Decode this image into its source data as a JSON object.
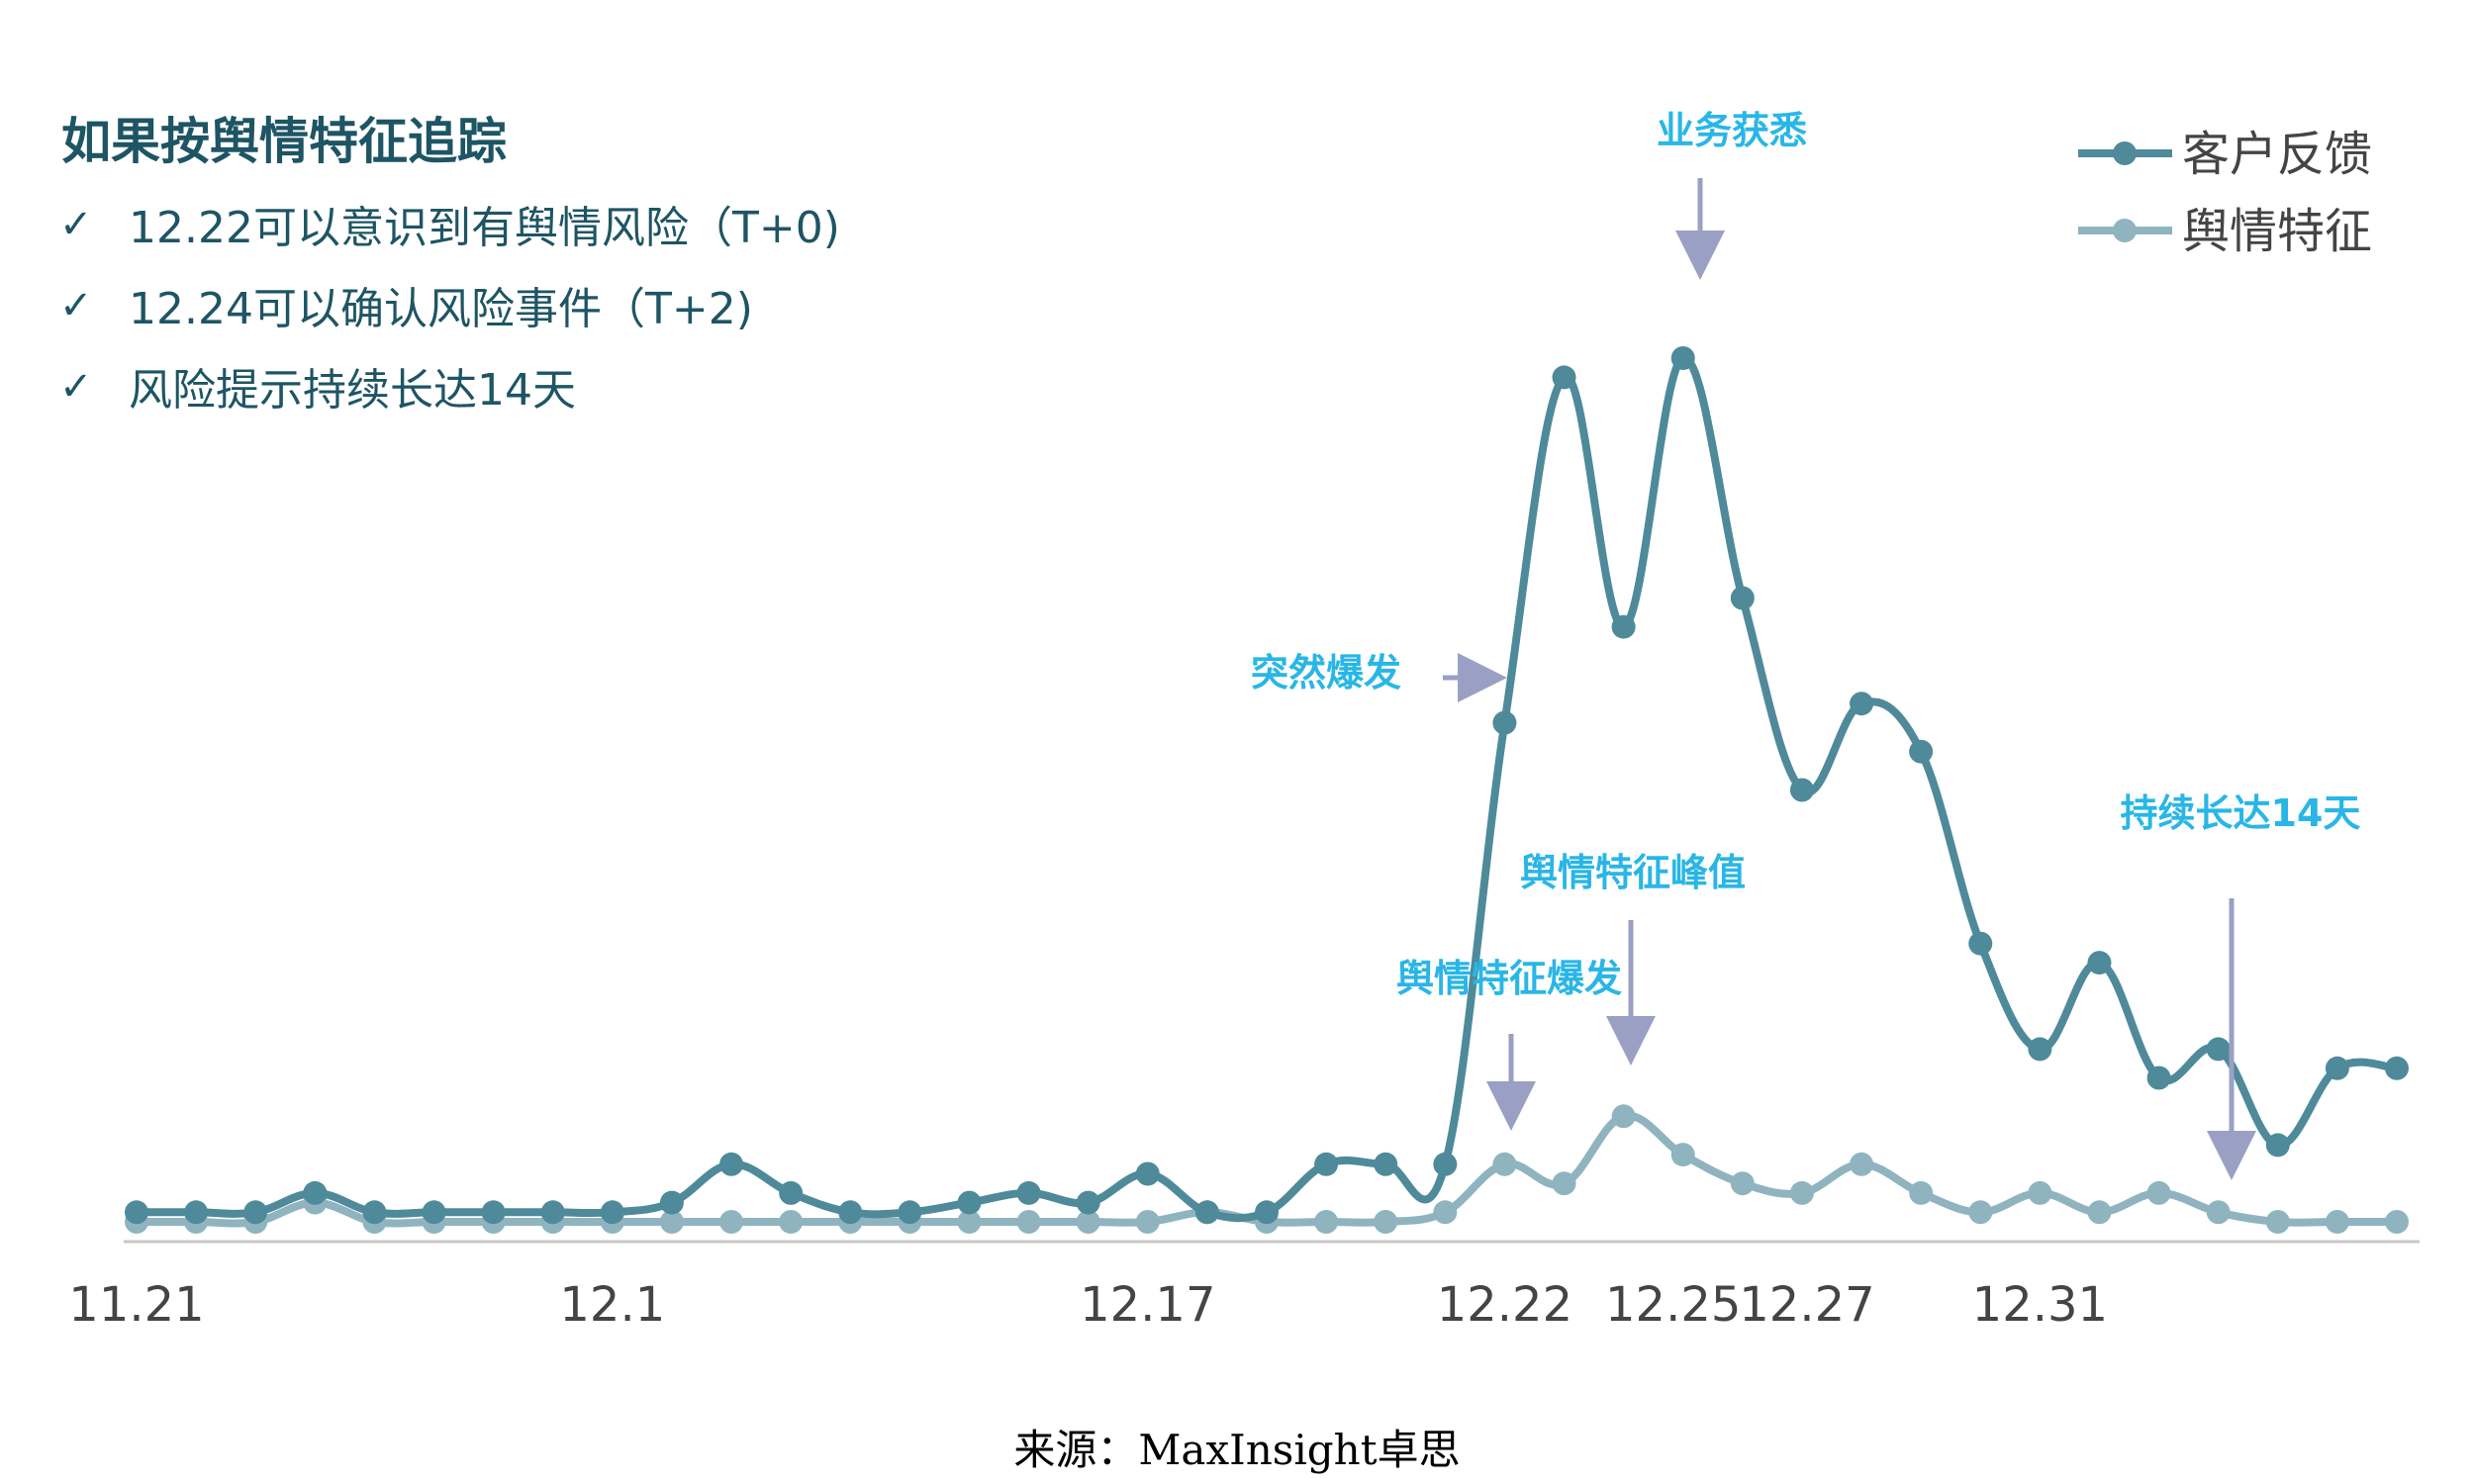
{
  "headline": {
    "title": "如果按舆情特征追踪",
    "check_mark": "✓",
    "bullets": [
      "12.22可以意识到有舆情风险（T+0)",
      "12.24可以确认风险事件（T+2)",
      "风险提示持续长达14天"
    ]
  },
  "source": "来源：MaxInsight卓思",
  "colors": {
    "feedback": "#4f8a9a",
    "sentiment": "#8fb4c0",
    "annotation_text": "#29b6e6",
    "arrow": "#9aa0c4",
    "title": "#1e5564",
    "axis": "#c8c8c8"
  },
  "chart_data": {
    "type": "line",
    "ylim": [
      0,
      100
    ],
    "series": [
      {
        "name": "客户反馈",
        "values": [
          1,
          1,
          1,
          3,
          1,
          1,
          1,
          1,
          1,
          2,
          6,
          3,
          1,
          1,
          2,
          3,
          2,
          5,
          1,
          1,
          6,
          6,
          6,
          52,
          88,
          62,
          90,
          65,
          45,
          54,
          49,
          29,
          18,
          27,
          15,
          18,
          8,
          16,
          16
        ]
      },
      {
        "name": "舆情特征",
        "values": [
          0,
          0,
          0,
          2,
          0,
          0,
          0,
          0,
          0,
          0,
          0,
          0,
          0,
          0,
          0,
          0,
          0,
          0,
          1,
          0,
          0,
          0,
          1,
          6,
          4,
          11,
          7,
          4,
          3,
          6,
          3,
          1,
          3,
          1,
          3,
          1,
          0,
          0,
          0
        ]
      }
    ],
    "x_tick_labels": [
      {
        "index": 0,
        "label": "11.21"
      },
      {
        "index": 8,
        "label": "12.1"
      },
      {
        "index": 17,
        "label": "12.17"
      },
      {
        "index": 23,
        "label": "12.22"
      },
      {
        "index": 26,
        "label": "12.25"
      },
      {
        "index": 28,
        "label": "12.27"
      },
      {
        "index": 32,
        "label": "12.31"
      }
    ],
    "annotations": [
      {
        "text": "业务获悉",
        "series": 0,
        "index": 26,
        "arrow": "down"
      },
      {
        "text": "突然爆发",
        "series": 0,
        "index": 23,
        "arrow": "right"
      },
      {
        "text": "舆情特征峰值",
        "series": 1,
        "index": 25,
        "arrow": "down"
      },
      {
        "text": "舆情特征爆发",
        "series": 1,
        "index": 23,
        "arrow": "down"
      },
      {
        "text": "持续长达14天",
        "series": 0,
        "index": 35,
        "arrow": "down"
      }
    ],
    "legend_position": "top-right",
    "grid": false
  }
}
